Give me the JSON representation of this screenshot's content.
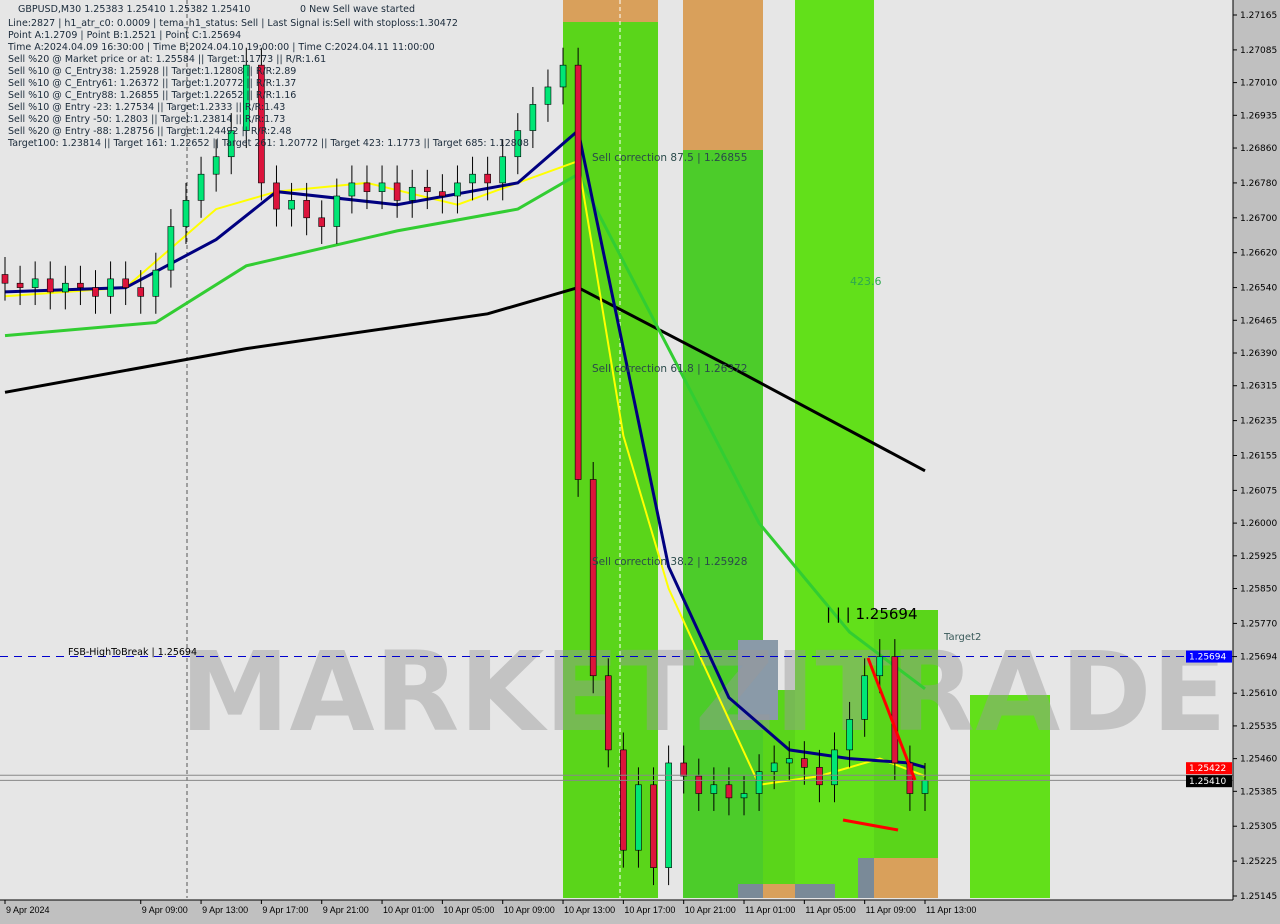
{
  "header": {
    "symbol_line": "GBPUSD,M30  1.25383 1.25410 1.25382 1.25410",
    "wave_status": "0 New Sell wave started",
    "info_lines": [
      "Line:2827 | h1_atr_c0: 0.0009 | tema_h1_status: Sell | Last Signal is:Sell with stoploss:1.30472",
      "Point A:1.2709 | Point B:1.2521 | Point C:1.25694",
      "Time A:2024.04.09 16:30:00 | Time B:2024.04.10 19:00:00 | Time C:2024.04.11 11:00:00",
      "Sell %20 @ Market price or at: 1.25584 || Target:1.1773 || R/R:1.61",
      "Sell %10 @ C_Entry38: 1.25928 || Target:1.12808 || R/R:2.89",
      "Sell %10 @ C_Entry61: 1.26372 || Target:1.20772 || R/R:1.37",
      "Sell %10 @ C_Entry88: 1.26855 || Target:1.22652 || R/R:1.16",
      "Sell %10 @ Entry -23: 1.27534 || Target:1.2333 || R/R:1.43",
      "Sell %20 @ Entry -50: 1.2803 || Target:1.23814 || R/R:1.73",
      "Sell %20 @ Entry -88: 1.28756 || Target:1.24492 || R/R:2.48",
      "Target100: 1.23814 || Target 161: 1.22652 || Target 261: 1.20772 || Target 423: 1.1773 || Target 685: 1.12808"
    ]
  },
  "annotations": {
    "corr875": "Sell correction 87.5 | 1.26855",
    "corr618": "Sell correction 61.8 | 1.26372",
    "corr382": "Sell correction 38.2 | 1.25928",
    "pointC": "| | | 1.25694",
    "fsb": "FSB-HighToBreak | 1.25694",
    "t4236": "423.6",
    "target2": "Target2",
    "watermark": "MARKETZITRADE"
  },
  "colors": {
    "bull": "#00e676",
    "bear": "#dc143c",
    "zone_green": "#5ad51a",
    "zone_orange": "#d9a05b",
    "ma_black": "#000000",
    "ma_navy": "#000080",
    "ma_yellow": "#ffff00",
    "ma_green": "#32cd32",
    "fsb_line": "#0000cd",
    "bid_label": "#ff0000",
    "ask_label": "#000000"
  },
  "chart_data": {
    "type": "candlestick",
    "symbol": "GBPUSD",
    "timeframe": "M30",
    "ylim": [
      1.25145,
      1.27165
    ],
    "y_ticks": [
      "1.27165",
      "1.27085",
      "1.27010",
      "1.26935",
      "1.26860",
      "1.26780",
      "1.26700",
      "1.26620",
      "1.26540",
      "1.26465",
      "1.26390",
      "1.26315",
      "1.26235",
      "1.26155",
      "1.26075",
      "1.26000",
      "1.25925",
      "1.25850",
      "1.25770",
      "1.25694",
      "1.25610",
      "1.25535",
      "1.25460",
      "1.25385",
      "1.25305",
      "1.25225",
      "1.25145"
    ],
    "x_ticks": [
      "9 Apr 2024",
      "9 Apr 09:00",
      "9 Apr 13:00",
      "9 Apr 17:00",
      "9 Apr 21:00",
      "10 Apr 01:00",
      "10 Apr 05:00",
      "10 Apr 09:00",
      "10 Apr 13:00",
      "10 Apr 17:00",
      "10 Apr 21:00",
      "11 Apr 01:00",
      "11 Apr 05:00",
      "11 Apr 09:00",
      "11 Apr 13:00"
    ],
    "hourly_close": [
      1.2655,
      1.2654,
      1.2656,
      1.2653,
      1.2655,
      1.2654,
      1.2652,
      1.2656,
      1.2654,
      1.2652,
      1.2658,
      1.2668,
      1.2674,
      1.268,
      1.2684,
      1.269,
      1.2705,
      1.2678,
      1.2672,
      1.2674,
      1.267,
      1.2668,
      1.2675,
      1.2678,
      1.2676,
      1.2678,
      1.2674,
      1.2677,
      1.2676,
      1.2675,
      1.2678,
      1.268,
      1.2678,
      1.2684,
      1.269,
      1.2696,
      1.27,
      1.2705,
      1.261,
      1.2565,
      1.2548,
      1.2525,
      1.254,
      1.2521,
      1.2545,
      1.2542,
      1.2538,
      1.254,
      1.2537,
      1.2538,
      1.2543,
      1.2545,
      1.2546,
      1.2544,
      1.254,
      1.2548,
      1.2555,
      1.2565,
      1.25694,
      1.2545,
      1.2538,
      1.2541
    ],
    "ma_black": [
      [
        0,
        1.263
      ],
      [
        16,
        1.264
      ],
      [
        32,
        1.2648
      ],
      [
        38,
        1.2654
      ],
      [
        48,
        1.2636
      ],
      [
        61,
        1.2612
      ]
    ],
    "ma_navy": [
      [
        0,
        1.2653
      ],
      [
        8,
        1.2654
      ],
      [
        14,
        1.2665
      ],
      [
        18,
        1.2676
      ],
      [
        26,
        1.2673
      ],
      [
        34,
        1.2678
      ],
      [
        38,
        1.269
      ],
      [
        41,
        1.264
      ],
      [
        44,
        1.259
      ],
      [
        48,
        1.256
      ],
      [
        52,
        1.2548
      ],
      [
        56,
        1.2546
      ],
      [
        60,
        1.2545
      ],
      [
        61,
        1.2544
      ]
    ],
    "ma_yellow": [
      [
        0,
        1.2652
      ],
      [
        8,
        1.2654
      ],
      [
        14,
        1.2672
      ],
      [
        18,
        1.2676
      ],
      [
        24,
        1.2678
      ],
      [
        30,
        1.2673
      ],
      [
        38,
        1.2683
      ],
      [
        41,
        1.262
      ],
      [
        44,
        1.2585
      ],
      [
        48,
        1.2555
      ],
      [
        50,
        1.254
      ],
      [
        54,
        1.2542
      ],
      [
        58,
        1.2546
      ],
      [
        61,
        1.2542
      ]
    ],
    "ma_green": [
      [
        0,
        1.2643
      ],
      [
        10,
        1.2646
      ],
      [
        16,
        1.2659
      ],
      [
        26,
        1.2667
      ],
      [
        34,
        1.2672
      ],
      [
        38,
        1.268
      ],
      [
        44,
        1.264
      ],
      [
        50,
        1.26
      ],
      [
        56,
        1.2575
      ],
      [
        61,
        1.2562
      ]
    ],
    "fsb_level": 1.25694,
    "bid": 1.25422,
    "ask": 1.2541
  }
}
